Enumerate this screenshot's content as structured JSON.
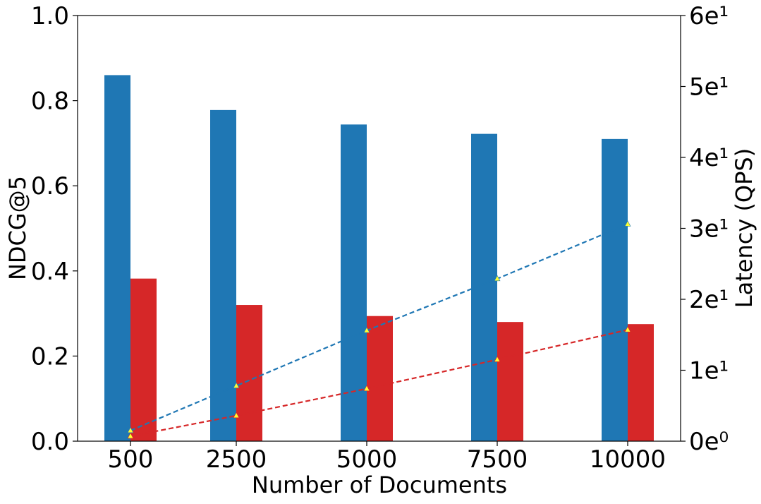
{
  "chart_data": {
    "type": "bar",
    "categories": [
      "500",
      "2500",
      "5000",
      "7500",
      "10000"
    ],
    "xlabel": "Number of Documents",
    "ylabel": "NDCG@5",
    "y2label": "Latency (QPS)",
    "ylim": [
      0,
      1.0
    ],
    "y2lim": [
      0,
      60
    ],
    "yticks": [
      "0.0",
      "0.2",
      "0.4",
      "0.6",
      "0.8",
      "1.0"
    ],
    "y2ticks": [
      "0e⁰",
      "1e¹",
      "2e¹",
      "3e¹",
      "4e¹",
      "5e¹",
      "6e¹"
    ],
    "grid": false,
    "series": [
      {
        "type": "bar",
        "axis": "left",
        "color": "#1f77b4",
        "values": [
          0.86,
          0.778,
          0.744,
          0.722,
          0.71
        ]
      },
      {
        "type": "bar",
        "axis": "left",
        "color": "#d62728",
        "values": [
          0.382,
          0.32,
          0.294,
          0.28,
          0.275
        ]
      },
      {
        "type": "line",
        "axis": "right",
        "style": "dashed",
        "color": "#1f77b4",
        "marker": "triangle",
        "marker_color": "#ffff33",
        "values": [
          1.5,
          7.8,
          15.6,
          22.9,
          30.6
        ]
      },
      {
        "type": "line",
        "axis": "right",
        "style": "dashed",
        "color": "#d62728",
        "marker": "triangle",
        "marker_color": "#ffff33",
        "values": [
          0.7,
          3.6,
          7.4,
          11.5,
          15.7
        ]
      }
    ]
  }
}
